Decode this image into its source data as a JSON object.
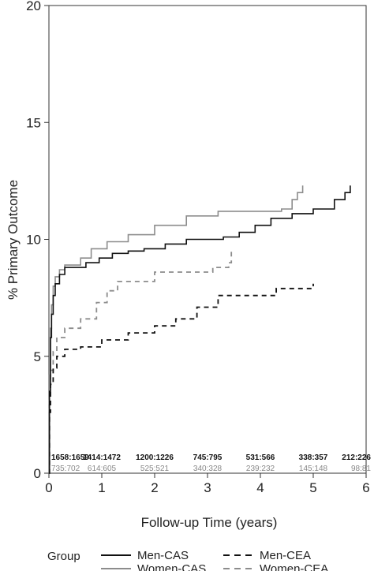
{
  "chart_data": {
    "type": "line",
    "title": "",
    "xlabel": "Follow-up Time (years)",
    "ylabel": "% Primary Outcome",
    "xlim": [
      0,
      6
    ],
    "ylim": [
      0,
      20
    ],
    "x_ticks": [
      0,
      1,
      2,
      3,
      4,
      5,
      6
    ],
    "y_ticks": [
      0,
      5,
      10,
      15,
      20
    ],
    "grid": false,
    "legend": {
      "placement": "bottom",
      "title": "Group",
      "entries": [
        {
          "name": "Men-CAS",
          "color": "#111111",
          "dash": "solid"
        },
        {
          "name": "Men-CEA",
          "color": "#111111",
          "dash": "dashed"
        },
        {
          "name": "Women-CAS",
          "color": "#8c8c8c",
          "dash": "solid"
        },
        {
          "name": "Women-CEA",
          "color": "#8c8c8c",
          "dash": "dashed"
        }
      ]
    },
    "series": [
      {
        "name": "Men-CAS",
        "color": "#111111",
        "dash": "solid",
        "points": [
          [
            0,
            0
          ],
          [
            0.01,
            3.5
          ],
          [
            0.03,
            5.8
          ],
          [
            0.05,
            6.8
          ],
          [
            0.08,
            7.6
          ],
          [
            0.12,
            8.1
          ],
          [
            0.2,
            8.5
          ],
          [
            0.3,
            8.8
          ],
          [
            0.6,
            8.8
          ],
          [
            0.7,
            9.0
          ],
          [
            0.95,
            9.2
          ],
          [
            1.2,
            9.4
          ],
          [
            1.5,
            9.5
          ],
          [
            1.8,
            9.6
          ],
          [
            2.2,
            9.8
          ],
          [
            2.6,
            10.0
          ],
          [
            3.3,
            10.1
          ],
          [
            3.6,
            10.3
          ],
          [
            3.9,
            10.6
          ],
          [
            4.2,
            10.9
          ],
          [
            4.6,
            11.1
          ],
          [
            5.0,
            11.3
          ],
          [
            5.4,
            11.7
          ],
          [
            5.6,
            12.0
          ],
          [
            5.7,
            12.3
          ]
        ]
      },
      {
        "name": "Women-CAS",
        "color": "#8c8c8c",
        "dash": "solid",
        "points": [
          [
            0,
            0
          ],
          [
            0.01,
            4.2
          ],
          [
            0.03,
            6.2
          ],
          [
            0.05,
            7.2
          ],
          [
            0.08,
            8.0
          ],
          [
            0.12,
            8.4
          ],
          [
            0.2,
            8.7
          ],
          [
            0.3,
            8.9
          ],
          [
            0.6,
            9.2
          ],
          [
            0.8,
            9.6
          ],
          [
            1.1,
            9.9
          ],
          [
            1.5,
            10.2
          ],
          [
            2.0,
            10.6
          ],
          [
            2.6,
            11.0
          ],
          [
            3.2,
            11.2
          ],
          [
            4.4,
            11.3
          ],
          [
            4.6,
            11.7
          ],
          [
            4.7,
            12.0
          ],
          [
            4.8,
            12.3
          ]
        ]
      },
      {
        "name": "Men-CEA",
        "color": "#111111",
        "dash": "dashed",
        "points": [
          [
            0,
            0
          ],
          [
            0.01,
            2.6
          ],
          [
            0.03,
            3.8
          ],
          [
            0.08,
            4.5
          ],
          [
            0.15,
            5.0
          ],
          [
            0.3,
            5.3
          ],
          [
            0.6,
            5.4
          ],
          [
            1.0,
            5.7
          ],
          [
            1.5,
            6.0
          ],
          [
            2.0,
            6.3
          ],
          [
            2.4,
            6.6
          ],
          [
            2.8,
            7.1
          ],
          [
            3.2,
            7.6
          ],
          [
            4.3,
            7.9
          ],
          [
            5.0,
            8.1
          ]
        ]
      },
      {
        "name": "Women-CEA",
        "color": "#8c8c8c",
        "dash": "dashed",
        "points": [
          [
            0,
            0
          ],
          [
            0.01,
            3.2
          ],
          [
            0.03,
            4.4
          ],
          [
            0.08,
            5.2
          ],
          [
            0.15,
            5.8
          ],
          [
            0.3,
            6.2
          ],
          [
            0.6,
            6.6
          ],
          [
            0.9,
            7.3
          ],
          [
            1.1,
            7.8
          ],
          [
            1.3,
            8.2
          ],
          [
            2.0,
            8.6
          ],
          [
            3.1,
            8.8
          ],
          [
            3.4,
            9.0
          ],
          [
            3.45,
            9.6
          ]
        ]
      }
    ],
    "at_risk": [
      {
        "x": 0,
        "men": "1658:1659",
        "women": "735:702"
      },
      {
        "x": 1,
        "men": "1414:1472",
        "women": "614:605"
      },
      {
        "x": 2,
        "men": "1200:1226",
        "women": "525:521"
      },
      {
        "x": 3,
        "men": "745:795",
        "women": "340:328"
      },
      {
        "x": 4,
        "men": "531:566",
        "women": "239:232"
      },
      {
        "x": 5,
        "men": "338:357",
        "women": "145:148"
      },
      {
        "x": 6,
        "men": "212:226",
        "women": "98:81"
      }
    ]
  }
}
